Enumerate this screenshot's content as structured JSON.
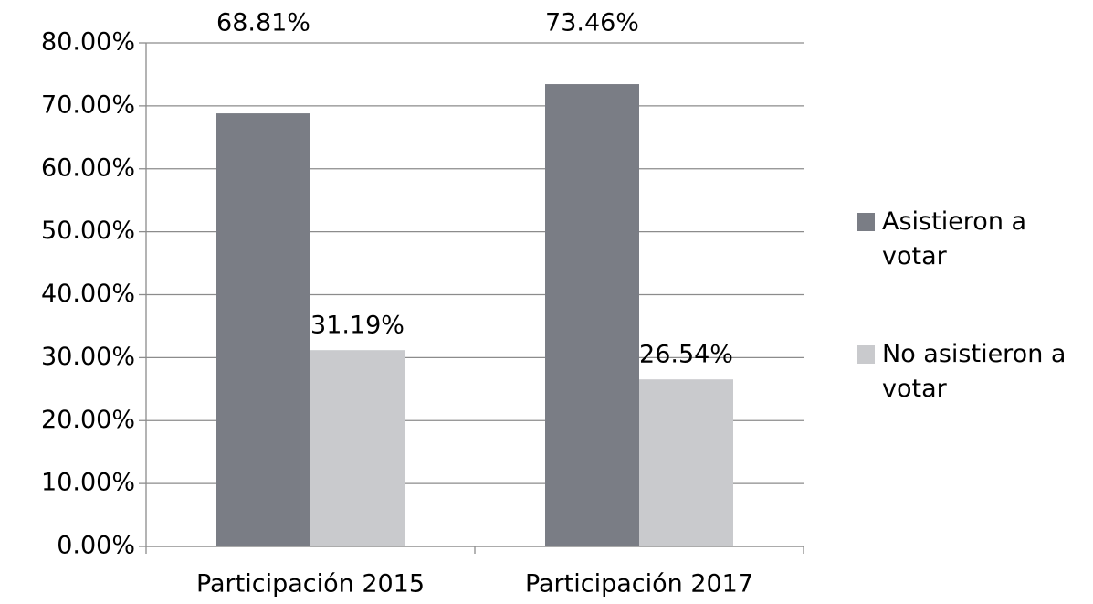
{
  "chart_data": {
    "type": "bar",
    "categories": [
      "Participación 2015",
      "Participación 2017"
    ],
    "series": [
      {
        "name": "Asistieron a votar",
        "color": "#7a7d85",
        "values": [
          68.81,
          73.46
        ],
        "value_labels": [
          "68.81%",
          "73.46%"
        ]
      },
      {
        "name": "No asistieron a votar",
        "color": "#c9cacd",
        "values": [
          31.19,
          26.54
        ],
        "value_labels": [
          "31.19%",
          "26.54%"
        ]
      }
    ],
    "ylim": [
      0,
      80
    ],
    "yticks": [
      {
        "value": 0,
        "label": "0.00%"
      },
      {
        "value": 10,
        "label": "10.00%"
      },
      {
        "value": 20,
        "label": "20.00%"
      },
      {
        "value": 30,
        "label": "30.00%"
      },
      {
        "value": 40,
        "label": "40.00%"
      },
      {
        "value": 50,
        "label": "50.00%"
      },
      {
        "value": 60,
        "label": "60.00%"
      },
      {
        "value": 70,
        "label": "70.00%"
      },
      {
        "value": 80,
        "label": "80.00%"
      }
    ],
    "grid": true,
    "legend": "right"
  }
}
